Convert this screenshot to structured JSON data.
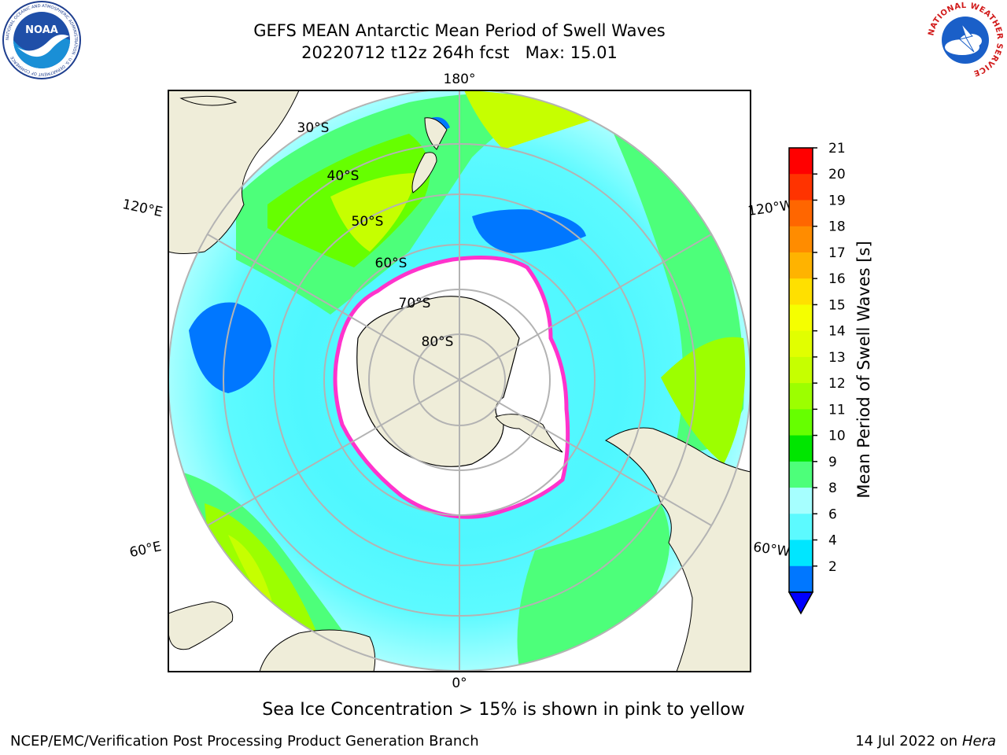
{
  "title": {
    "line1": "GEFS MEAN Antarctic Mean Period of Swell Waves",
    "line2": "20220712 t12z 264h fcst   Max: 15.01"
  },
  "map": {
    "longitude_labels": {
      "top": "180°",
      "bottom": "0°",
      "upper_left": "120°E",
      "lower_left": "60°E",
      "upper_right": "120°W",
      "lower_right": "60°W"
    },
    "latitude_labels": [
      "30°S",
      "40°S",
      "50°S",
      "60°S",
      "70°S",
      "80°S"
    ],
    "colors": {
      "land": "#efedd9",
      "ice_free_ocean_default": "#4ff7ff",
      "sea_ice_edge": "#ff33cc",
      "graticule": "#b3b3b3"
    }
  },
  "colorbar": {
    "label": "Mean Period of Swell Waves [s]",
    "ticks": [
      "21",
      "20",
      "19",
      "18",
      "17",
      "16",
      "15",
      "14",
      "13",
      "12",
      "11",
      "10",
      "9",
      "8",
      "6",
      "4",
      "2"
    ],
    "colors": [
      "#ff0000",
      "#ff3300",
      "#ff6600",
      "#ff8c00",
      "#ffb300",
      "#ffe000",
      "#f5ff00",
      "#e1ff00",
      "#c6ff00",
      "#9cff00",
      "#66ff00",
      "#00e600",
      "#4dff7a",
      "#a6ffff",
      "#5cfaff",
      "#00e6ff",
      "#0077ff"
    ],
    "extend_color": "#0000ff"
  },
  "notes": {
    "sea_ice": "Sea Ice Concentration > 15% is shown in pink to yellow"
  },
  "footer": {
    "left": "NCEP/EMC/Verification Post Processing Product Generation Branch",
    "right_prefix": "14 Jul 2022 on ",
    "right_machine": "Hera"
  },
  "logos": {
    "left": "NOAA",
    "left_ring": "NATIONAL OCEANIC AND ATMOSPHERIC ADMINISTRATION · U.S. DEPARTMENT OF COMMERCE",
    "right_ring": "NATIONAL WEATHER SERVICE"
  }
}
